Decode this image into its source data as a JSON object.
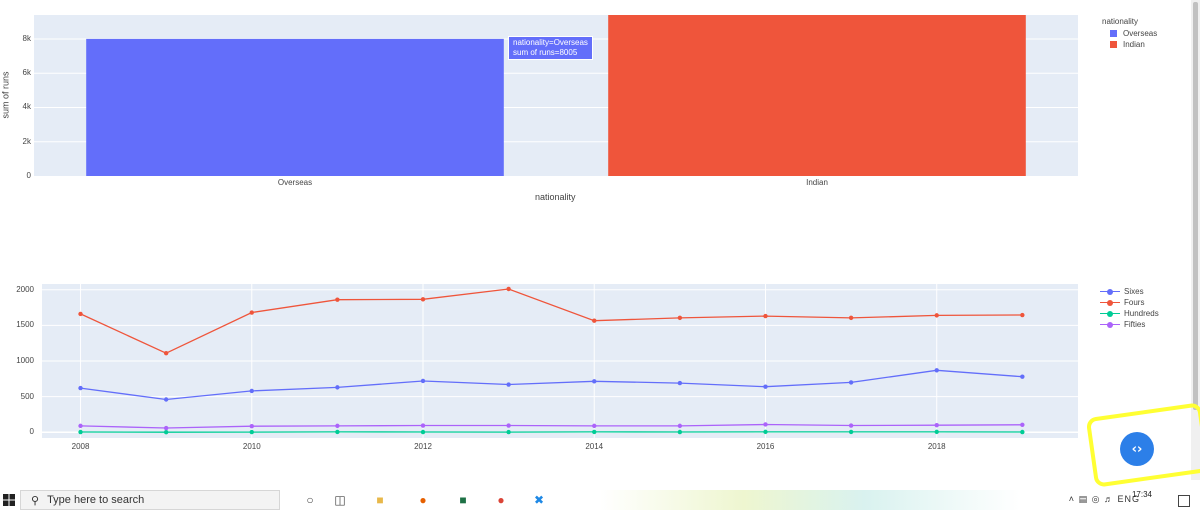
{
  "chart_data": [
    {
      "type": "bar",
      "categories": [
        "Overseas",
        "Indian"
      ],
      "values": [
        8005,
        9400
      ],
      "colors": [
        "#636efa",
        "#ef553b"
      ],
      "xlabel": "nationality",
      "ylabel": "sum of runs",
      "ylim": [
        0,
        9400
      ],
      "yticks": [
        0,
        2000,
        4000,
        6000,
        8000
      ],
      "ytick_labels": [
        "0",
        "2k",
        "4k",
        "6k",
        "8k"
      ],
      "legend": {
        "title": "nationality",
        "placement": "right",
        "items": [
          {
            "name": "Overseas",
            "color": "#636efa"
          },
          {
            "name": "Indian",
            "color": "#ef553b"
          }
        ]
      },
      "tooltip": {
        "line1": "nationality=Overseas",
        "line2": "sum of runs=8005"
      },
      "grid": true
    },
    {
      "type": "line",
      "x": [
        2008,
        2009,
        2010,
        2011,
        2012,
        2013,
        2014,
        2015,
        2016,
        2017,
        2018,
        2019
      ],
      "xticks": [
        2008,
        2010,
        2012,
        2014,
        2016,
        2018
      ],
      "yticks": [
        0,
        500,
        1000,
        1500,
        2000
      ],
      "ylim": [
        -80,
        2080
      ],
      "xlim": [
        2007.55,
        2019.65
      ],
      "series": [
        {
          "name": "Sixes",
          "color": "#636efa",
          "values": [
            620,
            460,
            580,
            630,
            720,
            670,
            715,
            690,
            640,
            700,
            870,
            780
          ]
        },
        {
          "name": "Fours",
          "color": "#ef553b",
          "values": [
            1660,
            1110,
            1680,
            1860,
            1865,
            2010,
            1565,
            1605,
            1630,
            1605,
            1640,
            1645
          ]
        },
        {
          "name": "Hundreds",
          "color": "#00cc96",
          "values": [
            4,
            2,
            3,
            5,
            4,
            3,
            5,
            4,
            6,
            5,
            6,
            4
          ]
        },
        {
          "name": "Fifties",
          "color": "#ab63fa",
          "values": [
            90,
            60,
            85,
            90,
            95,
            95,
            90,
            90,
            110,
            95,
            100,
            105
          ]
        }
      ],
      "legend": {
        "placement": "right"
      },
      "grid": true
    }
  ],
  "taskbar": {
    "search_placeholder": "Type here to search",
    "tray_lang": "ENG",
    "clock": "17:34"
  },
  "icons": {
    "start": "windows-logo-icon",
    "search": "magnifier-icon",
    "code_button": "code-brackets-icon"
  }
}
